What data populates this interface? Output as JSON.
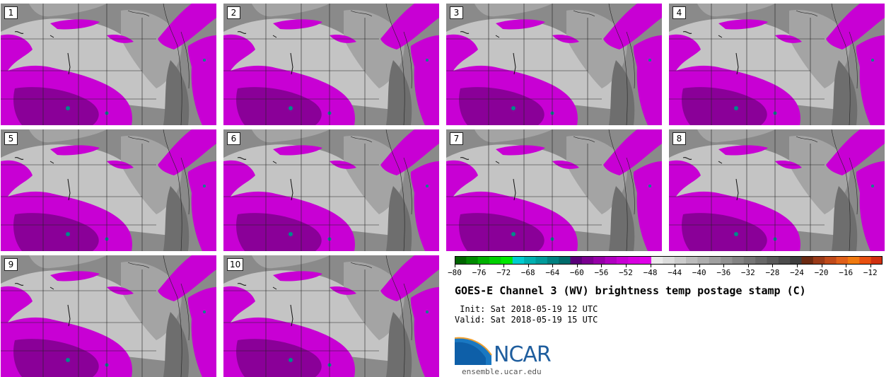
{
  "panels": [
    {
      "label": "1"
    },
    {
      "label": "2"
    },
    {
      "label": "3"
    },
    {
      "label": "4"
    },
    {
      "label": "5"
    },
    {
      "label": "6"
    },
    {
      "label": "7"
    },
    {
      "label": "8"
    },
    {
      "label": "9"
    },
    {
      "label": "10"
    }
  ],
  "colorbar": {
    "ticks": [
      "−80",
      "−76",
      "−72",
      "−68",
      "−64",
      "−60",
      "−56",
      "−52",
      "−48",
      "−44",
      "−40",
      "−36",
      "−32",
      "−28",
      "−24",
      "−20",
      "−16",
      "−12"
    ],
    "colors": [
      "#006400",
      "#008a00",
      "#00b000",
      "#00d000",
      "#00e800",
      "#00ccd0",
      "#00b0b0",
      "#009a9a",
      "#008080",
      "#006b6b",
      "#5a007a",
      "#7a0090",
      "#9600a8",
      "#b000c0",
      "#c800d4",
      "#d800e0",
      "#e000e8",
      "#eaeaea",
      "#dcdcdc",
      "#cccccc",
      "#bcbcbc",
      "#aeaeae",
      "#a0a0a0",
      "#929292",
      "#848484",
      "#767676",
      "#686868",
      "#5a5a5a",
      "#4c4c4c",
      "#3e3e3e",
      "#6b2a12",
      "#9a3a18",
      "#c04a1a",
      "#e0601a",
      "#f07a10",
      "#e85010",
      "#d03010"
    ]
  },
  "map_colors": {
    "background_gray": "#8a8a8a",
    "light_gray": "#c4c4c4",
    "mid_gray": "#a4a4a4",
    "dark_gray": "#6e6e6e",
    "magenta": "#c800d4",
    "dark_magenta": "#8a0098",
    "teal": "#008a8a"
  },
  "title": "GOES-E Channel 3 (WV) brightness temp postage stamp (C)",
  "init": " Init: Sat 2018-05-19 12 UTC",
  "valid": "Valid: Sat 2018-05-19 15 UTC",
  "logo": {
    "text": "NCAR",
    "color": "#1f5e9e"
  },
  "website": "ensemble.ucar.edu"
}
